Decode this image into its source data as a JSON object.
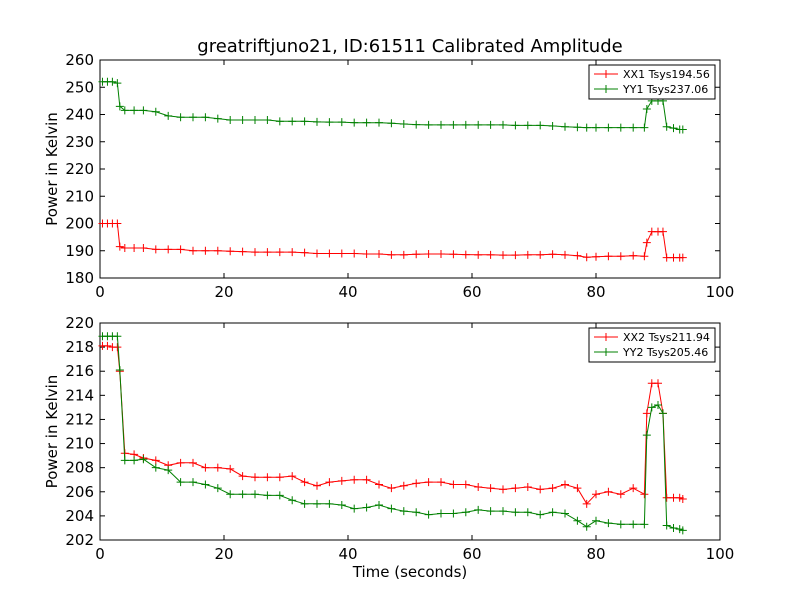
{
  "chart_data": [
    {
      "type": "line",
      "title": "greatriftjuno21, ID:61511 Calibrated Amplitude",
      "xlabel": "",
      "ylabel": "Power in Kelvin",
      "xlim": [
        0,
        100
      ],
      "ylim": [
        180,
        260
      ],
      "xticks": [
        0,
        20,
        40,
        60,
        80,
        100
      ],
      "yticks": [
        180,
        190,
        200,
        210,
        220,
        230,
        240,
        250,
        260
      ],
      "legend_position": "top-right",
      "grid": false,
      "series": [
        {
          "name": "XX1 Tsys194.56",
          "color": "#ff0000",
          "x": [
            0.4,
            1.2,
            2.0,
            2.8,
            3.2,
            4.0,
            5.5,
            7.0,
            9.0,
            11.0,
            13.0,
            15.0,
            17.0,
            19.0,
            21.0,
            23.0,
            25.0,
            27.0,
            29.0,
            31.0,
            33.0,
            35.0,
            37.0,
            39.0,
            41.0,
            43.0,
            45.0,
            47.0,
            49.0,
            51.0,
            53.0,
            55.0,
            57.0,
            59.0,
            61.0,
            63.0,
            65.0,
            67.0,
            69.0,
            71.0,
            73.0,
            75.0,
            77.0,
            78.5,
            80.0,
            82.0,
            84.0,
            86.0,
            87.8,
            88.2,
            89.0,
            90.0,
            90.8,
            91.4,
            92.5,
            93.5,
            94.0
          ],
          "y": [
            200,
            200,
            200,
            200,
            191.5,
            191,
            191,
            191,
            190.5,
            190.5,
            190.5,
            190,
            190,
            190,
            189.8,
            189.7,
            189.5,
            189.5,
            189.5,
            189.5,
            189.3,
            189,
            189,
            189,
            189,
            188.8,
            188.8,
            188.5,
            188.5,
            188.7,
            188.8,
            188.8,
            188.7,
            188.6,
            188.5,
            188.5,
            188.4,
            188.4,
            188.5,
            188.5,
            188.7,
            188.5,
            188.2,
            187.6,
            187.8,
            188,
            188,
            188.2,
            188,
            193,
            197,
            197,
            197,
            187.5,
            187.5,
            187.5,
            187.5
          ]
        },
        {
          "name": "YY1 Tsys237.06",
          "color": "#008000",
          "x": [
            0.4,
            1.2,
            2.0,
            2.8,
            3.2,
            4.0,
            5.5,
            7.0,
            9.0,
            11.0,
            13.0,
            15.0,
            17.0,
            19.0,
            21.0,
            23.0,
            25.0,
            27.0,
            29.0,
            31.0,
            33.0,
            35.0,
            37.0,
            39.0,
            41.0,
            43.0,
            45.0,
            47.0,
            49.0,
            51.0,
            53.0,
            55.0,
            57.0,
            59.0,
            61.0,
            63.0,
            65.0,
            67.0,
            69.0,
            71.0,
            73.0,
            75.0,
            77.0,
            78.5,
            80.0,
            82.0,
            84.0,
            86.0,
            87.8,
            88.2,
            89.0,
            90.0,
            90.8,
            91.4,
            92.5,
            93.5,
            94.0
          ],
          "y": [
            252,
            252,
            252,
            251.5,
            243,
            241.5,
            241.5,
            241.5,
            241,
            239.5,
            239,
            239,
            239,
            238.5,
            238,
            238,
            238,
            238,
            237.5,
            237.5,
            237.5,
            237.3,
            237.2,
            237.2,
            237,
            237,
            237,
            236.8,
            236.5,
            236.3,
            236.2,
            236.2,
            236.2,
            236.2,
            236.2,
            236.2,
            236.2,
            236,
            236,
            236,
            235.8,
            235.5,
            235.3,
            235.2,
            235.2,
            235.2,
            235.2,
            235.2,
            235.2,
            242,
            245,
            245,
            245,
            235.5,
            235,
            234.5,
            234.5
          ]
        }
      ]
    },
    {
      "type": "line",
      "title": "",
      "xlabel": "Time (seconds)",
      "ylabel": "Power in Kelvin",
      "xlim": [
        0,
        100
      ],
      "ylim": [
        202,
        220
      ],
      "xticks": [
        0,
        20,
        40,
        60,
        80,
        100
      ],
      "yticks": [
        202,
        204,
        206,
        208,
        210,
        212,
        214,
        216,
        218,
        220
      ],
      "legend_position": "top-right",
      "grid": false,
      "series": [
        {
          "name": "XX2 Tsys211.94",
          "color": "#ff0000",
          "x": [
            0.4,
            1.2,
            2.0,
            2.8,
            3.2,
            4.0,
            5.5,
            7.0,
            9.0,
            11.0,
            13.0,
            15.0,
            17.0,
            19.0,
            21.0,
            23.0,
            25.0,
            27.0,
            29.0,
            31.0,
            33.0,
            35.0,
            37.0,
            39.0,
            41.0,
            43.0,
            45.0,
            47.0,
            49.0,
            51.0,
            53.0,
            55.0,
            57.0,
            59.0,
            61.0,
            63.0,
            65.0,
            67.0,
            69.0,
            71.0,
            73.0,
            75.0,
            77.0,
            78.5,
            80.0,
            82.0,
            84.0,
            86.0,
            87.8,
            88.2,
            89.0,
            90.0,
            90.8,
            91.4,
            92.5,
            93.5,
            94.0
          ],
          "y": [
            218.1,
            218.1,
            218,
            218,
            216,
            209.2,
            209.1,
            208.8,
            208.6,
            208.2,
            208.4,
            208.4,
            208,
            208,
            207.9,
            207.3,
            207.2,
            207.2,
            207.2,
            207.3,
            206.8,
            206.5,
            206.8,
            206.9,
            207,
            207,
            206.6,
            206.3,
            206.5,
            206.7,
            206.8,
            206.8,
            206.6,
            206.6,
            206.4,
            206.3,
            206.2,
            206.3,
            206.4,
            206.2,
            206.3,
            206.6,
            206.3,
            205,
            205.8,
            206,
            205.8,
            206.3,
            205.8,
            212.5,
            215,
            215,
            212.5,
            205.5,
            205.5,
            205.5,
            205.4
          ]
        },
        {
          "name": "YY2 Tsys205.46",
          "color": "#008000",
          "x": [
            0.4,
            1.2,
            2.0,
            2.8,
            3.2,
            4.0,
            5.5,
            7.0,
            9.0,
            11.0,
            13.0,
            15.0,
            17.0,
            19.0,
            21.0,
            23.0,
            25.0,
            27.0,
            29.0,
            31.0,
            33.0,
            35.0,
            37.0,
            39.0,
            41.0,
            43.0,
            45.0,
            47.0,
            49.0,
            51.0,
            53.0,
            55.0,
            57.0,
            59.0,
            61.0,
            63.0,
            65.0,
            67.0,
            69.0,
            71.0,
            73.0,
            75.0,
            77.0,
            78.5,
            80.0,
            82.0,
            84.0,
            86.0,
            87.8,
            88.2,
            89.0,
            90.0,
            90.8,
            91.4,
            92.5,
            93.5,
            94.0
          ],
          "y": [
            218.9,
            218.9,
            218.9,
            218.9,
            216.1,
            208.6,
            208.6,
            208.7,
            208,
            207.8,
            206.8,
            206.8,
            206.6,
            206.3,
            205.8,
            205.8,
            205.8,
            205.7,
            205.7,
            205.3,
            205,
            205,
            205,
            204.9,
            204.6,
            204.7,
            204.9,
            204.6,
            204.4,
            204.3,
            204.1,
            204.2,
            204.2,
            204.3,
            204.5,
            204.4,
            204.4,
            204.3,
            204.3,
            204.1,
            204.3,
            204.2,
            203.6,
            203.1,
            203.6,
            203.4,
            203.3,
            203.3,
            203.3,
            210.7,
            213,
            213.2,
            212.5,
            203.2,
            203,
            202.9,
            202.8
          ]
        }
      ]
    }
  ]
}
